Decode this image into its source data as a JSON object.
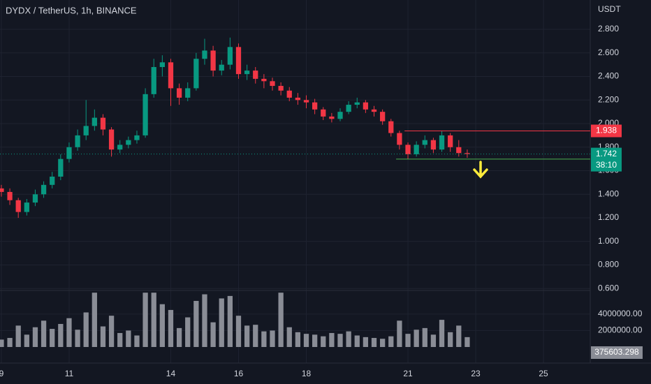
{
  "chart_data": {
    "type": "candlestick",
    "title": "DYDX / TetherUS, 1h, BINANCE",
    "currency": "USDT",
    "x": [
      9,
      9.25,
      9.5,
      9.75,
      10,
      10.25,
      10.5,
      10.75,
      11,
      11.25,
      11.5,
      11.75,
      12,
      12.25,
      12.5,
      12.75,
      13,
      13.25,
      13.5,
      13.75,
      14,
      14.25,
      14.5,
      14.75,
      15,
      15.25,
      15.5,
      15.75,
      16,
      16.25,
      16.5,
      16.75,
      17,
      17.25,
      17.5,
      17.75,
      18,
      18.25,
      18.5,
      18.75,
      19,
      19.25,
      19.5,
      19.75,
      20,
      20.25,
      20.5,
      20.75,
      21,
      21.25,
      21.5,
      21.75,
      22,
      22.25,
      22.5,
      22.75
    ],
    "open": [
      1.45,
      1.42,
      1.35,
      1.25,
      1.33,
      1.4,
      1.48,
      1.55,
      1.7,
      1.8,
      1.9,
      1.98,
      2.05,
      1.95,
      1.78,
      1.82,
      1.86,
      1.9,
      2.25,
      2.48,
      2.52,
      2.3,
      2.22,
      2.3,
      2.55,
      2.62,
      2.45,
      2.5,
      2.65,
      2.42,
      2.45,
      2.38,
      2.36,
      2.32,
      2.28,
      2.22,
      2.2,
      2.18,
      2.12,
      2.06,
      2.04,
      2.1,
      2.16,
      2.18,
      2.12,
      2.1,
      2.02,
      1.92,
      1.82,
      1.74,
      1.82,
      1.86,
      1.78,
      1.9,
      1.8,
      1.75
    ],
    "high": [
      1.48,
      1.45,
      1.37,
      1.36,
      1.44,
      1.51,
      1.59,
      1.74,
      1.84,
      1.95,
      2.2,
      2.12,
      2.08,
      1.97,
      1.86,
      1.89,
      1.94,
      2.3,
      2.55,
      2.58,
      2.55,
      2.34,
      2.35,
      2.6,
      2.72,
      2.66,
      2.54,
      2.73,
      2.68,
      2.5,
      2.48,
      2.42,
      2.39,
      2.35,
      2.31,
      2.26,
      2.24,
      2.21,
      2.14,
      2.09,
      2.13,
      2.19,
      2.22,
      2.2,
      2.15,
      2.12,
      2.04,
      1.94,
      1.84,
      1.85,
      1.9,
      1.88,
      1.94,
      1.92,
      1.86,
      1.78
    ],
    "low": [
      1.38,
      1.31,
      1.2,
      1.22,
      1.3,
      1.37,
      1.45,
      1.52,
      1.67,
      1.77,
      1.86,
      1.94,
      1.9,
      1.72,
      1.75,
      1.79,
      1.83,
      1.88,
      2.22,
      2.4,
      2.15,
      2.16,
      2.19,
      2.28,
      2.5,
      2.4,
      2.41,
      2.46,
      2.38,
      2.37,
      2.34,
      2.3,
      2.28,
      2.24,
      2.19,
      2.16,
      2.13,
      2.08,
      2.03,
      2.01,
      2.02,
      2.08,
      2.13,
      2.09,
      2.06,
      1.99,
      1.89,
      1.78,
      1.7,
      1.72,
      1.79,
      1.75,
      1.76,
      1.76,
      1.72,
      1.71
    ],
    "close": [
      1.42,
      1.35,
      1.25,
      1.33,
      1.4,
      1.48,
      1.55,
      1.7,
      1.8,
      1.9,
      1.98,
      2.05,
      1.95,
      1.78,
      1.82,
      1.86,
      1.9,
      2.25,
      2.48,
      2.52,
      2.3,
      2.22,
      2.3,
      2.55,
      2.62,
      2.45,
      2.5,
      2.65,
      2.42,
      2.45,
      2.38,
      2.36,
      2.32,
      2.28,
      2.22,
      2.2,
      2.18,
      2.12,
      2.06,
      2.04,
      2.1,
      2.16,
      2.18,
      2.12,
      2.1,
      2.02,
      1.92,
      1.82,
      1.74,
      1.82,
      1.86,
      1.78,
      1.9,
      1.8,
      1.75,
      1.742
    ],
    "volume": [
      900000,
      1100000,
      2600000,
      1500000,
      2400000,
      3200000,
      2200000,
      2800000,
      3500000,
      2100000,
      4200000,
      6600000,
      2500000,
      3800000,
      1700000,
      2000000,
      1400000,
      6600000,
      6600000,
      5200000,
      4500000,
      2300000,
      3600000,
      5600000,
      6400000,
      3000000,
      5900000,
      6200000,
      3800000,
      2600000,
      2700000,
      1900000,
      2000000,
      6600000,
      2400000,
      1800000,
      1600000,
      1500000,
      1300000,
      1700000,
      1600000,
      1900000,
      1400000,
      1200000,
      1100000,
      1000000,
      1300000,
      3200000,
      1600000,
      2100000,
      2300000,
      1500000,
      3300000,
      1800000,
      2600000,
      1200000
    ],
    "xlim": [
      8.96,
      26.38
    ],
    "xticks": [
      9,
      11,
      14,
      16,
      18,
      21,
      23,
      25
    ],
    "ylim": [
      0.59,
      3.049
    ],
    "yticks": [
      {
        "value": 0.6,
        "label": "0.600"
      },
      {
        "value": 0.8,
        "label": "0.800"
      },
      {
        "value": 1,
        "label": "1.000"
      },
      {
        "value": 1.2,
        "label": "1.200"
      },
      {
        "value": 1.4,
        "label": "1.400"
      },
      {
        "value": 1.6,
        "label": "1.600"
      },
      {
        "value": 1.8,
        "label": "1.800"
      },
      {
        "value": 2,
        "label": "2.000"
      },
      {
        "value": 2.2,
        "label": "2.200"
      },
      {
        "value": 2.4,
        "label": "2.400"
      },
      {
        "value": 2.6,
        "label": "2.600"
      },
      {
        "value": 2.8,
        "label": "2.800"
      }
    ],
    "volume_ylim": [
      0,
      6700000
    ],
    "volume_yticks": [
      {
        "value": 2000000,
        "label": "2000000.00"
      },
      {
        "value": 4000000,
        "label": "4000000.00"
      }
    ],
    "up_color": "#089981",
    "down_color": "#f23645",
    "volume_color": "#8a8d96",
    "last_price": 1.742,
    "countdown": "38:10",
    "last_volume": 375603.298,
    "lines": [
      {
        "value": 1.938,
        "start": 20.9,
        "color": "#f23645"
      },
      {
        "value": 1.699,
        "start": 20.65,
        "color": "#4caf50"
      }
    ]
  }
}
